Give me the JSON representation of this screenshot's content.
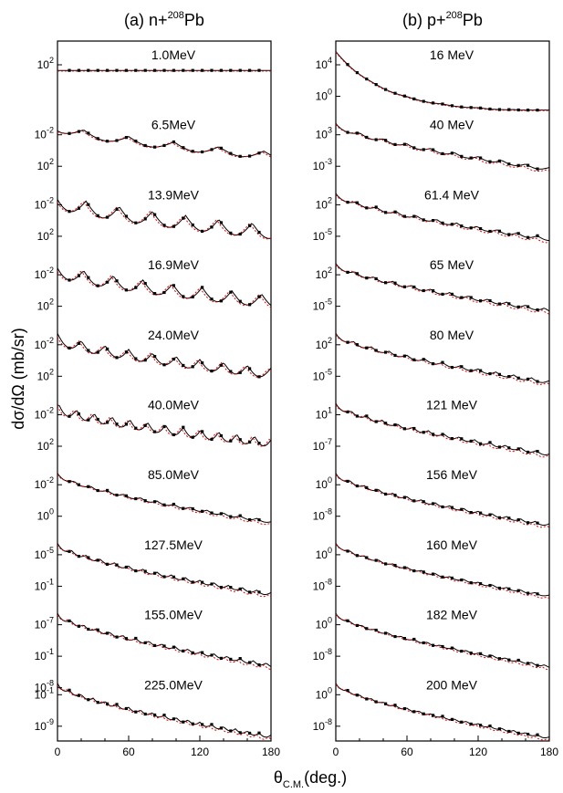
{
  "figure": {
    "ylabel": "dσ/dΩ (mb/sr)",
    "xlabel_main": "θ",
    "xlabel_sub": "C.M.",
    "xlabel_unit": "(deg.)"
  },
  "colors": {
    "theory_a": "#000000",
    "theory_b": "#e00000",
    "data": "#000000"
  },
  "chart_data": [
    {
      "type": "line",
      "panel": "a",
      "title_label": "(a)",
      "title_proj": "n+",
      "title_mass": "208",
      "title_target": "Pb",
      "xlim": [
        0,
        180
      ],
      "x_ticks": [
        "0",
        "60",
        "120",
        "180"
      ],
      "series_styles": [
        {
          "color": "#000000",
          "style": "solid"
        },
        {
          "color": "#e00000",
          "style": "dotted"
        },
        {
          "marker": "square",
          "color": "#000000"
        }
      ],
      "curves": [
        {
          "label": "1.0MeV",
          "ticks": [
            {
              "base": "10",
              "exp": "2"
            }
          ],
          "shape": {
            "kind": "flat",
            "osc": 0.03
          }
        },
        {
          "label": "6.5MeV",
          "ticks": [
            {
              "base": "10",
              "exp": "-2"
            },
            {
              "base": "10",
              "exp": "2"
            }
          ],
          "shape": {
            "kind": "osc",
            "drop": 0.45,
            "amp": 0.12,
            "period": 38,
            "phase": 60
          }
        },
        {
          "label": "13.9MeV",
          "ticks": [
            {
              "base": "10",
              "exp": "-2"
            },
            {
              "base": "10",
              "exp": "2"
            }
          ],
          "shape": {
            "kind": "osc",
            "drop": 0.5,
            "amp": 0.22,
            "period": 28,
            "phase": 24
          }
        },
        {
          "label": "16.9MeV",
          "ticks": [
            {
              "base": "10",
              "exp": "-2"
            },
            {
              "base": "10",
              "exp": "2"
            }
          ],
          "shape": {
            "kind": "osc",
            "drop": 0.5,
            "amp": 0.2,
            "period": 25,
            "phase": 22
          }
        },
        {
          "label": "24.0MeV",
          "ticks": [
            {
              "base": "10",
              "exp": "-2"
            },
            {
              "base": "10",
              "exp": "2"
            }
          ],
          "shape": {
            "kind": "osc",
            "drop": 0.55,
            "amp": 0.16,
            "period": 20,
            "phase": 20
          }
        },
        {
          "label": "40.0MeV",
          "ticks": [
            {
              "base": "10",
              "exp": "-2"
            },
            {
              "base": "10",
              "exp": "2"
            }
          ],
          "shape": {
            "kind": "osc",
            "drop": 0.55,
            "amp": 0.14,
            "period": 15,
            "phase": 16
          }
        },
        {
          "label": "85.0MeV",
          "ticks": [
            {
              "base": "10",
              "exp": "-2"
            },
            {
              "base": "10",
              "exp": "0"
            }
          ],
          "shape": {
            "kind": "decay",
            "drop": 0.75,
            "amp": 0.04,
            "period": 14
          }
        },
        {
          "label": "127.5MeV",
          "ticks": [
            {
              "base": "10",
              "exp": "-5"
            },
            {
              "base": "10",
              "exp": "-1"
            }
          ],
          "shape": {
            "kind": "decay",
            "drop": 0.78,
            "amp": 0.05,
            "period": 12
          }
        },
        {
          "label": "155.0MeV",
          "ticks": [
            {
              "base": "10",
              "exp": "-7"
            },
            {
              "base": "10",
              "exp": "-1"
            },
            {
              "base": "10",
              "exp": "-8"
            }
          ],
          "shape": {
            "kind": "decay",
            "drop": 0.8,
            "amp": 0.05,
            "period": 11
          }
        },
        {
          "label": "225.0MeV",
          "ticks": [
            {
              "base": "10",
              "exp": "-1"
            },
            {
              "base": "10",
              "exp": "-9"
            }
          ],
          "shape": {
            "kind": "decay",
            "drop": 0.82,
            "amp": 0.05,
            "period": 10
          }
        }
      ]
    },
    {
      "type": "line",
      "panel": "b",
      "title_label": "(b)",
      "title_proj": "p+",
      "title_mass": "208",
      "title_target": "Pb",
      "xlim": [
        0,
        180
      ],
      "x_ticks": [
        "0",
        "60",
        "120",
        "180"
      ],
      "series_styles": [
        {
          "color": "#000000",
          "style": "solid"
        },
        {
          "color": "#e00000",
          "style": "dotted"
        },
        {
          "marker": "square",
          "color": "#000000"
        }
      ],
      "curves": [
        {
          "label": "16   MeV",
          "ticks": [
            {
              "base": "10",
              "exp": "4"
            },
            {
              "base": "10",
              "exp": "0"
            }
          ],
          "shape": {
            "kind": "rutherford",
            "drop": 0.95,
            "amp": 0.01,
            "period": 30
          }
        },
        {
          "label": "40   MeV",
          "ticks": [
            {
              "base": "10",
              "exp": "3"
            },
            {
              "base": "10",
              "exp": "-3"
            }
          ],
          "shape": {
            "kind": "decay",
            "drop": 0.7,
            "amp": 0.05,
            "period": 20
          }
        },
        {
          "label": "61.4   MeV",
          "ticks": [
            {
              "base": "10",
              "exp": "2"
            },
            {
              "base": "10",
              "exp": "-5"
            }
          ],
          "shape": {
            "kind": "decay",
            "drop": 0.7,
            "amp": 0.05,
            "period": 17
          }
        },
        {
          "label": "65   MeV",
          "ticks": [
            {
              "base": "10",
              "exp": "2"
            },
            {
              "base": "10",
              "exp": "-5"
            }
          ],
          "shape": {
            "kind": "decay",
            "drop": 0.72,
            "amp": 0.05,
            "period": 16
          }
        },
        {
          "label": "80   MeV",
          "ticks": [
            {
              "base": "10",
              "exp": "2"
            },
            {
              "base": "10",
              "exp": "-5"
            }
          ],
          "shape": {
            "kind": "decay",
            "drop": 0.75,
            "amp": 0.05,
            "period": 15
          }
        },
        {
          "label": "121   MeV",
          "ticks": [
            {
              "base": "10",
              "exp": "1"
            },
            {
              "base": "10",
              "exp": "-7"
            }
          ],
          "shape": {
            "kind": "decay",
            "drop": 0.78,
            "amp": 0.05,
            "period": 13
          }
        },
        {
          "label": "156   MeV",
          "ticks": [
            {
              "base": "10",
              "exp": "0"
            },
            {
              "base": "10",
              "exp": "-8"
            }
          ],
          "shape": {
            "kind": "decay",
            "drop": 0.8,
            "amp": 0.04,
            "period": 12
          }
        },
        {
          "label": "160   MeV",
          "ticks": [
            {
              "base": "10",
              "exp": "0"
            },
            {
              "base": "10",
              "exp": "-8"
            }
          ],
          "shape": {
            "kind": "decay",
            "drop": 0.82,
            "amp": 0.03,
            "period": 12
          }
        },
        {
          "label": "182   MeV",
          "ticks": [
            {
              "base": "10",
              "exp": "0"
            },
            {
              "base": "10",
              "exp": "-8"
            }
          ],
          "shape": {
            "kind": "decay",
            "drop": 0.83,
            "amp": 0.03,
            "period": 11
          }
        },
        {
          "label": "200   MeV",
          "ticks": [
            {
              "base": "10",
              "exp": "0"
            },
            {
              "base": "10",
              "exp": "-8"
            }
          ],
          "shape": {
            "kind": "decay",
            "drop": 0.85,
            "amp": 0.03,
            "period": 10
          }
        }
      ]
    }
  ]
}
